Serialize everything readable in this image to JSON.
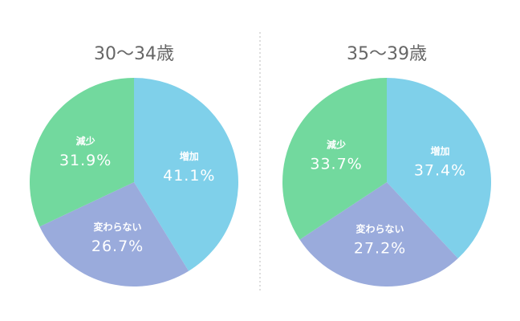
{
  "chart_data": [
    {
      "type": "pie",
      "title": "30〜34歳",
      "categories": [
        "増加",
        "変わらない",
        "減少"
      ],
      "values": [
        41.1,
        26.7,
        31.9
      ],
      "value_labels": [
        "41.1%",
        "26.7%",
        "31.9%"
      ],
      "colors": [
        "#7fd0ea",
        "#9aabdc",
        "#72d99e"
      ]
    },
    {
      "type": "pie",
      "title": "35〜39歳",
      "categories": [
        "増加",
        "変わらない",
        "減少"
      ],
      "values": [
        37.4,
        27.2,
        33.7
      ],
      "value_labels": [
        "37.4%",
        "27.2%",
        "33.7%"
      ],
      "colors": [
        "#7fd0ea",
        "#9aabdc",
        "#72d99e"
      ]
    }
  ]
}
